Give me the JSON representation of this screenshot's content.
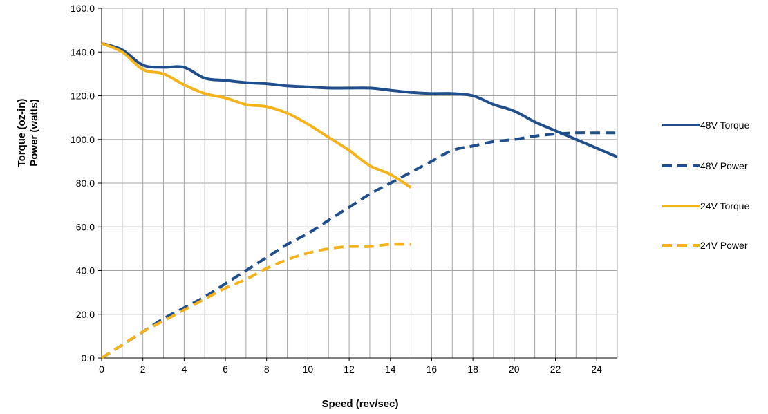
{
  "chart_data": {
    "type": "line",
    "title": "",
    "xlabel": "Speed (rev/sec)",
    "ylabel_lines": [
      "Torque  (oz-in)",
      "Power (watts)"
    ],
    "xlim": [
      0,
      25
    ],
    "ylim": [
      0,
      160
    ],
    "xticks": [
      0,
      2,
      4,
      6,
      8,
      10,
      12,
      14,
      16,
      18,
      20,
      22,
      24
    ],
    "yticks": [
      0,
      20,
      40,
      60,
      80,
      100,
      120,
      140,
      160
    ],
    "ytick_labels": [
      "0.0",
      "20.0",
      "40.0",
      "60.0",
      "80.0",
      "100.0",
      "120.0",
      "140.0",
      "160.0"
    ],
    "grid": true,
    "legend_position": "right",
    "series": [
      {
        "name": "48V Torque",
        "color": "#1f4e8c",
        "dash": "solid",
        "x": [
          0,
          1,
          2,
          3,
          4,
          5,
          6,
          7,
          8,
          9,
          10,
          11,
          12,
          13,
          14,
          15,
          16,
          17,
          18,
          19,
          20,
          21,
          22,
          23,
          24,
          25
        ],
        "y": [
          144,
          141,
          134,
          133,
          133,
          128,
          127,
          126,
          125.5,
          124.5,
          124,
          123.5,
          123.5,
          123.5,
          122.5,
          121.5,
          121,
          121,
          120,
          116,
          113,
          108,
          104,
          100,
          96,
          92
        ]
      },
      {
        "name": "48V Power",
        "color": "#1f4e8c",
        "dash": "dashed",
        "x": [
          0,
          1,
          2,
          3,
          4,
          5,
          6,
          7,
          8,
          9,
          10,
          11,
          12,
          13,
          14,
          15,
          16,
          17,
          18,
          19,
          20,
          21,
          22,
          23,
          24,
          25
        ],
        "y": [
          0,
          6,
          12,
          18,
          23,
          28,
          34,
          40,
          46,
          52,
          57,
          63,
          69,
          75,
          80,
          85,
          90,
          95,
          97,
          99,
          100,
          101.5,
          102.5,
          103,
          103,
          103
        ]
      },
      {
        "name": "24V Torque",
        "color": "#f5b21b",
        "dash": "solid",
        "x": [
          0,
          1,
          2,
          3,
          4,
          5,
          6,
          7,
          8,
          9,
          10,
          11,
          12,
          13,
          14,
          15
        ],
        "y": [
          144,
          140,
          132,
          130,
          125,
          121,
          119,
          116,
          115,
          112,
          107,
          101,
          95,
          88,
          84,
          78
        ]
      },
      {
        "name": "24V Power",
        "color": "#f5b21b",
        "dash": "dashed",
        "x": [
          0,
          1,
          2,
          3,
          4,
          5,
          6,
          7,
          8,
          9,
          10,
          11,
          12,
          13,
          14,
          15
        ],
        "y": [
          0,
          6,
          12,
          17,
          22,
          27,
          32,
          36,
          41,
          45,
          48,
          50,
          51,
          51,
          52,
          52
        ]
      }
    ]
  }
}
